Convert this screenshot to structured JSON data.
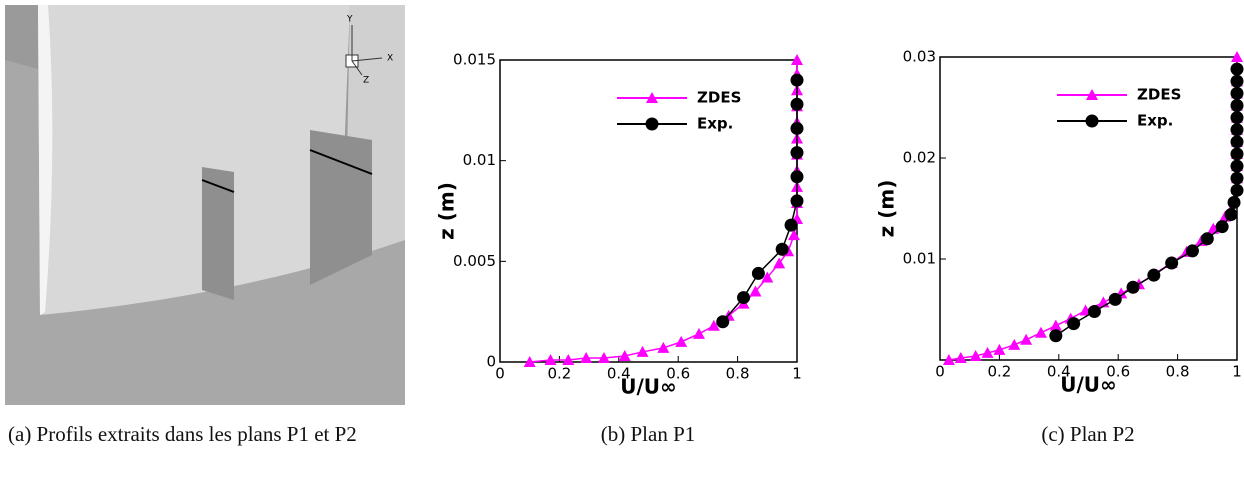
{
  "panel_a": {
    "axis_labels": [
      "Y",
      "X",
      "Z"
    ],
    "caption": "(a) Profils extraits dans les plans P1 et P2"
  },
  "chart_data": [
    {
      "type": "line",
      "caption": "(b) Plan P1",
      "xlabel": "U/U∞",
      "ylabel": "z (m)",
      "xlim": [
        0,
        1
      ],
      "ylim": [
        0,
        0.015
      ],
      "xticks": [
        0,
        0.2,
        0.4,
        0.6,
        0.8,
        1
      ],
      "yticks": [
        0,
        0.005,
        0.01,
        0.015
      ],
      "legend": "upper right",
      "series": [
        {
          "name": "ZDES",
          "color": "#ff00ff",
          "marker": "triangle",
          "x": [
            0.1,
            0.17,
            0.23,
            0.29,
            0.35,
            0.42,
            0.48,
            0.55,
            0.61,
            0.67,
            0.72,
            0.77,
            0.82,
            0.86,
            0.9,
            0.94,
            0.97,
            0.99,
            1,
            1,
            1,
            1,
            1,
            1,
            1,
            1,
            1,
            1,
            1
          ],
          "values": [
            0,
            0.0001,
            0.0001,
            0.0002,
            0.0002,
            0.0003,
            0.0005,
            0.0007,
            0.001,
            0.0014,
            0.0018,
            0.0023,
            0.0029,
            0.0035,
            0.0042,
            0.0049,
            0.0055,
            0.0063,
            0.0071,
            0.0079,
            0.0087,
            0.0095,
            0.0103,
            0.0111,
            0.0119,
            0.0127,
            0.0135,
            0.0143,
            0.015
          ]
        },
        {
          "name": "Exp.",
          "color": "#000000",
          "marker": "circle",
          "x": [
            0.75,
            0.82,
            0.87,
            0.95,
            0.98,
            1,
            1,
            1,
            1,
            1,
            1
          ],
          "values": [
            0.002,
            0.0032,
            0.0044,
            0.0056,
            0.0068,
            0.008,
            0.0092,
            0.0104,
            0.0116,
            0.0128,
            0.014
          ]
        }
      ]
    },
    {
      "type": "line",
      "caption": "(c) Plan P2",
      "xlabel": "U/U∞",
      "ylabel": "z (m)",
      "xlim": [
        0,
        1
      ],
      "ylim": [
        0,
        0.03
      ],
      "xticks": [
        0,
        0.2,
        0.4,
        0.6,
        0.8,
        1
      ],
      "yticks": [
        0.01,
        0.02,
        0.03
      ],
      "legend": "upper right",
      "series": [
        {
          "name": "ZDES",
          "color": "#ff00ff",
          "marker": "triangle",
          "x": [
            0.03,
            0.07,
            0.12,
            0.16,
            0.2,
            0.25,
            0.29,
            0.34,
            0.39,
            0.44,
            0.49,
            0.55,
            0.61,
            0.67,
            0.72,
            0.78,
            0.83,
            0.88,
            0.92,
            0.96,
            0.99,
            1,
            1,
            1,
            1,
            1,
            1,
            1,
            1,
            1,
            1
          ],
          "values": [
            0,
            0.0002,
            0.0004,
            0.0007,
            0.001,
            0.0015,
            0.002,
            0.0027,
            0.0034,
            0.0041,
            0.0049,
            0.0057,
            0.0066,
            0.0075,
            0.0085,
            0.0096,
            0.0107,
            0.0118,
            0.013,
            0.0142,
            0.0158,
            0.018,
            0.0192,
            0.0204,
            0.0216,
            0.0228,
            0.024,
            0.0252,
            0.0264,
            0.0276,
            0.03
          ]
        },
        {
          "name": "Exp.",
          "color": "#000000",
          "marker": "circle",
          "x": [
            0.39,
            0.45,
            0.52,
            0.59,
            0.65,
            0.72,
            0.78,
            0.85,
            0.9,
            0.95,
            0.98,
            0.99,
            1,
            1,
            1,
            1,
            1,
            1,
            1,
            1,
            1,
            1,
            1
          ],
          "values": [
            0.0024,
            0.0036,
            0.0048,
            0.006,
            0.0072,
            0.0084,
            0.0096,
            0.0108,
            0.012,
            0.0132,
            0.0144,
            0.0156,
            0.0168,
            0.018,
            0.0192,
            0.0204,
            0.0216,
            0.0228,
            0.024,
            0.0252,
            0.0264,
            0.0276,
            0.0288
          ]
        }
      ]
    }
  ]
}
